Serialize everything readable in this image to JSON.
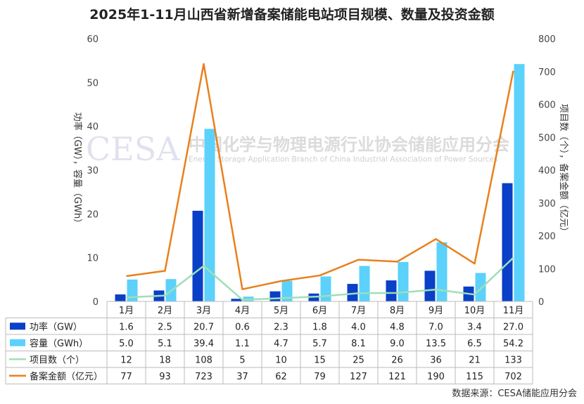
{
  "chart_data": {
    "type": "bar-line-combo",
    "title": "2025年1-11月山西省新增备案储能电站项目规模、数量及投资金额",
    "categories": [
      "1月",
      "2月",
      "3月",
      "4月",
      "5月",
      "6月",
      "7月",
      "8月",
      "9月",
      "10月",
      "11月"
    ],
    "series": [
      {
        "name": "功率（GW）",
        "type": "bar",
        "axis": "left",
        "color": "#0a3fc7",
        "values": [
          1.6,
          2.5,
          20.7,
          0.6,
          2.3,
          1.8,
          4.0,
          4.8,
          7.0,
          3.4,
          27.0
        ],
        "labels": [
          "1.6",
          "2.5",
          "20.7",
          "0.6",
          "2.3",
          "1.8",
          "4.0",
          "4.8",
          "7.0",
          "3.4",
          "27.0"
        ]
      },
      {
        "name": "容量（GWh）",
        "type": "bar",
        "axis": "left",
        "color": "#5bd1fb",
        "values": [
          5.0,
          5.1,
          39.4,
          1.1,
          4.7,
          5.7,
          8.1,
          9.0,
          13.5,
          6.5,
          54.2
        ],
        "labels": [
          "5.0",
          "5.1",
          "39.4",
          "1.1",
          "4.7",
          "5.7",
          "8.1",
          "9.0",
          "13.5",
          "6.5",
          "54.2"
        ]
      },
      {
        "name": "项目数（个）",
        "type": "line",
        "axis": "right",
        "color": "#9de0b5",
        "values": [
          12,
          18,
          108,
          5,
          10,
          15,
          25,
          26,
          36,
          21,
          133
        ],
        "labels": [
          "12",
          "18",
          "108",
          "5",
          "10",
          "15",
          "25",
          "26",
          "36",
          "21",
          "133"
        ]
      },
      {
        "name": "备案金额（亿元）",
        "type": "line",
        "axis": "right",
        "color": "#e9801c",
        "values": [
          77,
          93,
          723,
          37,
          62,
          79,
          127,
          121,
          190,
          115,
          702
        ],
        "labels": [
          "77",
          "93",
          "723",
          "37",
          "62",
          "79",
          "127",
          "121",
          "190",
          "115",
          "702"
        ]
      }
    ],
    "y_left": {
      "label": "功率（GW），容量（GWh）",
      "range": [
        0,
        60
      ],
      "ticks": [
        "0",
        "10",
        "20",
        "30",
        "40",
        "50",
        "60"
      ]
    },
    "y_right": {
      "label": "项目数（个），备案金额（亿元）",
      "range": [
        0,
        800
      ],
      "ticks": [
        "0",
        "100",
        "200",
        "300",
        "400",
        "500",
        "600",
        "700",
        "800"
      ]
    },
    "data_table": true,
    "legend": "in-table-left",
    "grid": false
  },
  "watermark": {
    "logo_text": "CESA",
    "cn_text": "中国化学与物理电源行业协会储能应用分会",
    "en_text": "Energy Storage Application Branch of China Industrial Association of Power Sources"
  },
  "source_text": "数据来源：CESA储能应用分会"
}
